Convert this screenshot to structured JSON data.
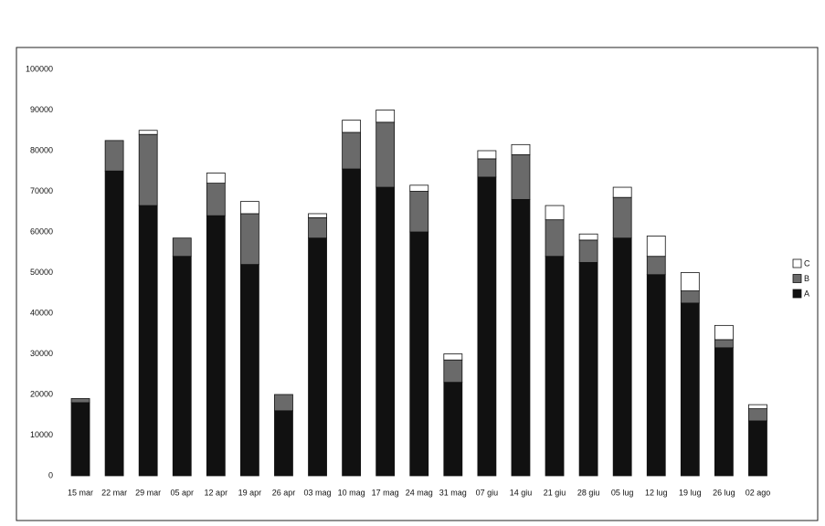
{
  "chart_data": {
    "type": "stacked_bar",
    "categories": [
      "15 mar",
      "22 mar",
      "29 mar",
      "05 apr",
      "12 apr",
      "19 apr",
      "26 apr",
      "03 mag",
      "10 mag",
      "17 mag",
      "24 mag",
      "31 mag",
      "07 giu",
      "14 giu",
      "21 giu",
      "28 giu",
      "05 lug",
      "12 lug",
      "19 lug",
      "26 lug",
      "02 ago"
    ],
    "series": [
      {
        "name": "A",
        "color": "#111111",
        "values": [
          18000,
          75000,
          66500,
          54000,
          64000,
          52000,
          16000,
          58500,
          75500,
          71000,
          60000,
          23000,
          73500,
          68000,
          54000,
          52500,
          58500,
          49500,
          42500,
          31500,
          13500
        ]
      },
      {
        "name": "B",
        "color": "#6a6a6a",
        "values": [
          1000,
          7500,
          17500,
          4500,
          8000,
          12500,
          4000,
          5000,
          9000,
          16000,
          10000,
          5500,
          4500,
          11000,
          9000,
          5500,
          10000,
          4500,
          3000,
          2000,
          3000
        ]
      },
      {
        "name": "C",
        "color": "#ffffff",
        "values": [
          0,
          0,
          1000,
          0,
          2500,
          3000,
          0,
          1000,
          3000,
          3000,
          1500,
          1500,
          2000,
          2500,
          3500,
          1500,
          2500,
          5000,
          4500,
          3500,
          1000
        ]
      }
    ],
    "ylim": [
      0,
      100000
    ],
    "yticks": [
      0,
      10000,
      20000,
      30000,
      40000,
      50000,
      60000,
      70000,
      80000,
      90000,
      100000
    ],
    "grid": false,
    "legend": "right"
  }
}
